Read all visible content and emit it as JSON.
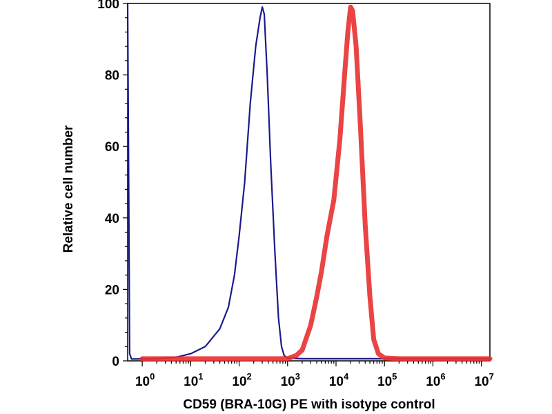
{
  "chart_data": {
    "type": "line",
    "title": "",
    "xlabel": "CD59 (BRA-10G) PE with isotype control",
    "ylabel": "Relative cell number",
    "x_scale": "log",
    "xlim": [
      0.5,
      15000000
    ],
    "ylim": [
      0,
      100
    ],
    "x_ticks": [
      {
        "base": "10",
        "exp": "0",
        "value": 1
      },
      {
        "base": "10",
        "exp": "1",
        "value": 10
      },
      {
        "base": "10",
        "exp": "2",
        "value": 100
      },
      {
        "base": "10",
        "exp": "3",
        "value": 1000
      },
      {
        "base": "10",
        "exp": "4",
        "value": 10000
      },
      {
        "base": "10",
        "exp": "5",
        "value": 100000
      },
      {
        "base": "10",
        "exp": "6",
        "value": 1000000
      },
      {
        "base": "10",
        "exp": "7",
        "value": 10000000
      }
    ],
    "y_ticks": [
      "0",
      "20",
      "40",
      "60",
      "80",
      "100"
    ],
    "grid": false,
    "series": [
      {
        "color": "#1a1a8c",
        "points": [
          [
            0.5,
            100
          ],
          [
            0.52,
            60
          ],
          [
            0.55,
            2
          ],
          [
            0.6,
            0.5
          ],
          [
            2,
            0.6
          ],
          [
            5,
            1
          ],
          [
            10,
            2
          ],
          [
            20,
            4
          ],
          [
            40,
            9
          ],
          [
            60,
            15
          ],
          [
            80,
            24
          ],
          [
            100,
            35
          ],
          [
            130,
            50
          ],
          [
            170,
            72
          ],
          [
            220,
            88
          ],
          [
            270,
            96
          ],
          [
            300,
            99
          ],
          [
            330,
            97
          ],
          [
            380,
            80
          ],
          [
            450,
            55
          ],
          [
            550,
            30
          ],
          [
            650,
            12
          ],
          [
            750,
            4
          ],
          [
            850,
            1.5
          ],
          [
            1000,
            0.8
          ],
          [
            2000,
            0.6
          ],
          [
            100000,
            0.6
          ],
          [
            15000000,
            0.6
          ]
        ]
      },
      {
        "color": "#e83030",
        "points": [
          [
            1,
            0.6
          ],
          [
            1000,
            0.6
          ],
          [
            1500,
            1.5
          ],
          [
            2000,
            3
          ],
          [
            3000,
            10
          ],
          [
            4000,
            18
          ],
          [
            5000,
            25
          ],
          [
            6500,
            35
          ],
          [
            9000,
            45
          ],
          [
            12000,
            62
          ],
          [
            15000,
            80
          ],
          [
            17500,
            92
          ],
          [
            20000,
            99
          ],
          [
            22000,
            98
          ],
          [
            26000,
            88
          ],
          [
            32000,
            65
          ],
          [
            40000,
            38
          ],
          [
            50000,
            18
          ],
          [
            60000,
            6
          ],
          [
            75000,
            2
          ],
          [
            100000,
            0.8
          ],
          [
            200000,
            0.6
          ],
          [
            15000000,
            0.6
          ]
        ]
      }
    ]
  }
}
